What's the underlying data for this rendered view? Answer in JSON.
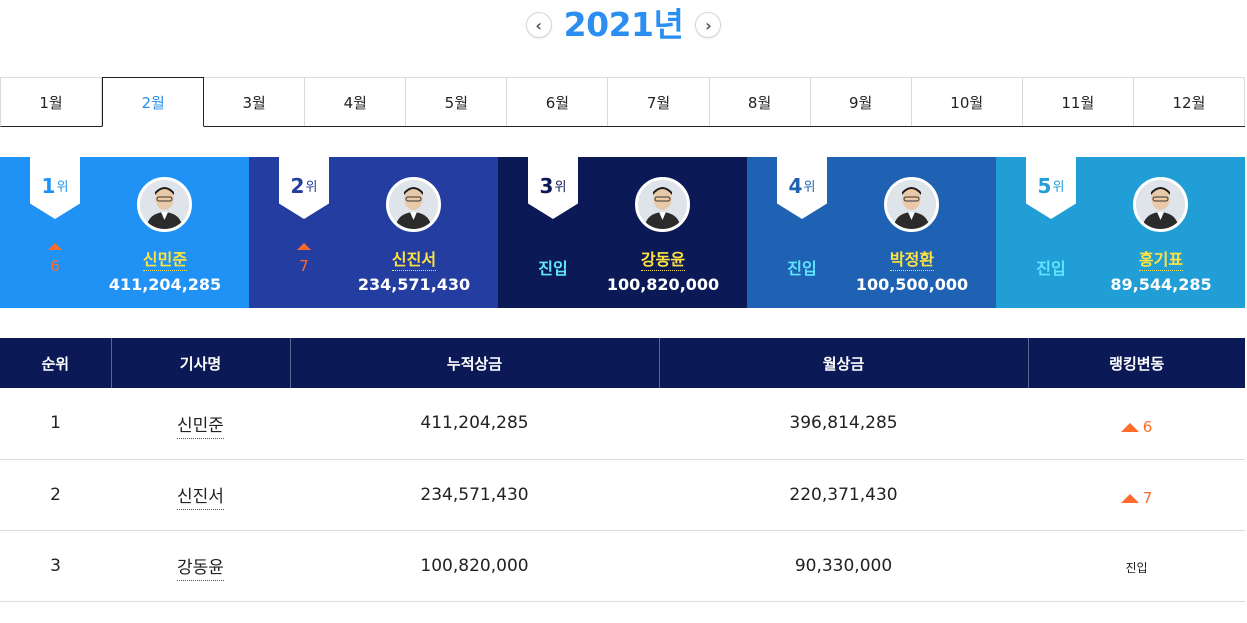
{
  "year": {
    "title": "2021년",
    "prev_glyph": "‹",
    "next_glyph": "›"
  },
  "months": [
    "1월",
    "2월",
    "3월",
    "4월",
    "5월",
    "6월",
    "7월",
    "8월",
    "9월",
    "10월",
    "11월",
    "12월"
  ],
  "active_month_index": 1,
  "top_players": [
    {
      "rank": "1",
      "rank_unit": "위",
      "change_type": "up",
      "change": "6",
      "name": "신민준",
      "prize": "411,204,285",
      "bg": "#2192f5"
    },
    {
      "rank": "2",
      "rank_unit": "위",
      "change_type": "up",
      "change": "7",
      "name": "신진서",
      "prize": "234,571,430",
      "bg": "#233da0"
    },
    {
      "rank": "3",
      "rank_unit": "위",
      "change_type": "new",
      "change": "진입",
      "name": "강동윤",
      "prize": "100,820,000",
      "bg": "#0b1a56"
    },
    {
      "rank": "4",
      "rank_unit": "위",
      "change_type": "new",
      "change": "진입",
      "name": "박정환",
      "prize": "100,500,000",
      "bg": "#1f62b3"
    },
    {
      "rank": "5",
      "rank_unit": "위",
      "change_type": "new",
      "change": "진입",
      "name": "홍기표",
      "prize": "89,544,285",
      "bg": "#219ed6"
    }
  ],
  "table": {
    "headers": [
      "순위",
      "기사명",
      "누적상금",
      "월상금",
      "랭킹변동"
    ],
    "rows": [
      {
        "rank": "1",
        "name": "신민준",
        "total": "411,204,285",
        "monthly": "396,814,285",
        "change_type": "up",
        "change": "6"
      },
      {
        "rank": "2",
        "name": "신진서",
        "total": "234,571,430",
        "monthly": "220,371,430",
        "change_type": "up",
        "change": "7"
      },
      {
        "rank": "3",
        "name": "강동윤",
        "total": "100,820,000",
        "monthly": "90,330,000",
        "change_type": "new",
        "change": "진입"
      }
    ]
  },
  "colors": {
    "accent": "#2a8ff0",
    "header_bg": "#0b1a56",
    "up": "#ff6b2c",
    "entry": "#5fe6ff",
    "name_highlight": "#ffe23f"
  }
}
